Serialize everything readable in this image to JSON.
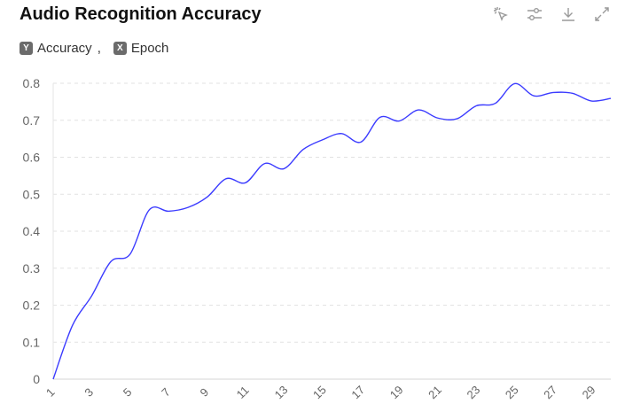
{
  "header": {
    "title": "Audio Recognition Accuracy"
  },
  "toolbar": {
    "icons": [
      "magic-select-icon",
      "sliders-icon",
      "download-icon",
      "expand-icon"
    ]
  },
  "legend": {
    "y_key": "Y",
    "y_label": "Accuracy",
    "separator": ",",
    "x_key": "X",
    "x_label": "Epoch"
  },
  "chart_data": {
    "type": "line",
    "x": [
      1,
      2,
      3,
      4,
      5,
      6,
      7,
      8,
      9,
      10,
      11,
      12,
      13,
      14,
      15,
      16,
      17,
      18,
      19,
      20,
      21,
      22,
      23,
      24,
      25,
      26,
      27,
      28,
      29,
      30
    ],
    "x_tick_labels": [
      "1",
      "3",
      "5",
      "7",
      "9",
      "11",
      "13",
      "15",
      "17",
      "19",
      "21",
      "23",
      "25",
      "27",
      "29"
    ],
    "series": [
      {
        "values": [
          0.0,
          0.145,
          0.225,
          0.318,
          0.338,
          0.458,
          0.454,
          0.464,
          0.492,
          0.542,
          0.531,
          0.583,
          0.569,
          0.621,
          0.647,
          0.664,
          0.641,
          0.708,
          0.698,
          0.728,
          0.706,
          0.704,
          0.739,
          0.746,
          0.799,
          0.766,
          0.775,
          0.773,
          0.752,
          0.759
        ],
        "color": "#3b3bff"
      }
    ],
    "ylim": [
      0,
      0.8
    ],
    "y_ticks": [
      "0",
      "0.1",
      "0.2",
      "0.3",
      "0.4",
      "0.5",
      "0.6",
      "0.7",
      "0.8"
    ],
    "grid": true,
    "legend_position": "top-left"
  }
}
